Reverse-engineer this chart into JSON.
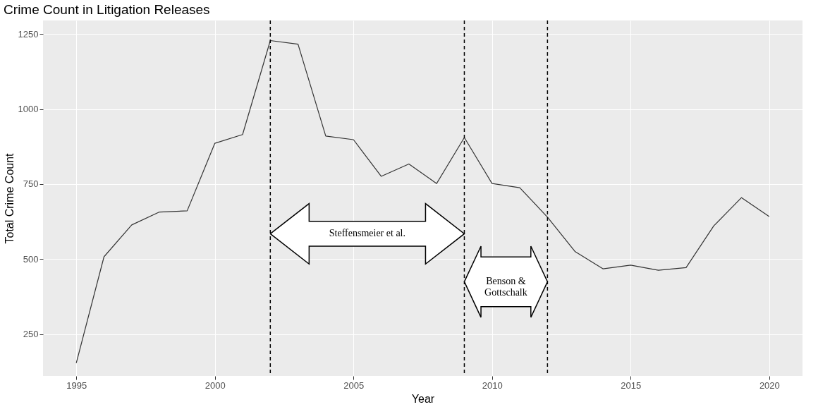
{
  "chart_data": {
    "type": "line",
    "title": "Crime Count in Litigation Releases",
    "xlabel": "Year",
    "ylabel": "Total Crime Count",
    "x": [
      1995,
      1996,
      1997,
      1998,
      1999,
      2000,
      2001,
      2002,
      2003,
      2004,
      2005,
      2006,
      2007,
      2008,
      2009,
      2010,
      2011,
      2012,
      2013,
      2014,
      2015,
      2016,
      2017,
      2018,
      2019,
      2020
    ],
    "series": [
      {
        "color": "#333333",
        "values": [
          154,
          508,
          614,
          657,
          661,
          886,
          915,
          1228,
          1216,
          910,
          898,
          776,
          817,
          752,
          905,
          752,
          738,
          640,
          525,
          468,
          480,
          463,
          472,
          611,
          705,
          642
        ]
      }
    ],
    "xlim": [
      1993.8,
      2021.2
    ],
    "xticks": [
      1995,
      2000,
      2005,
      2010,
      2015,
      2020
    ],
    "ylim": [
      111,
      1295
    ],
    "yticks": [
      250,
      500,
      750,
      1000,
      1250
    ],
    "grid": true,
    "ref_lines": [
      {
        "axis": "x",
        "value": 2002,
        "line_style": "dashed",
        "color": "#000000"
      },
      {
        "axis": "x",
        "value": 2009,
        "line_style": "dashed",
        "color": "#000000"
      },
      {
        "axis": "x",
        "value": 2012,
        "line_style": "dashed",
        "color": "#000000"
      }
    ],
    "annotations": [
      "Steffensmeier et al.",
      "Benson &\nGottschalk"
    ]
  }
}
